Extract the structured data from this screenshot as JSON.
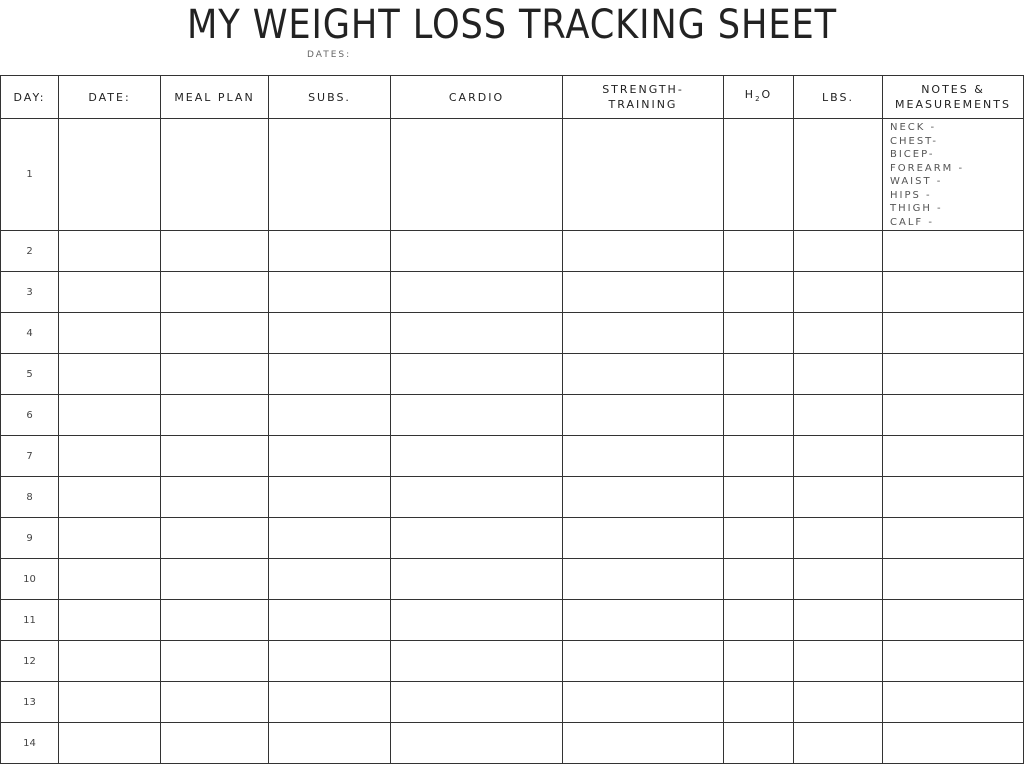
{
  "title": "MY WEIGHT LOSS TRACKING SHEET",
  "dates_label": "DATES:",
  "columns": [
    "DAY:",
    "DATE:",
    "MEAL PLAN",
    "SUBS.",
    "CARDIO",
    "STRENGTH-",
    "TRAINING",
    "H",
    "2",
    "O",
    "LBS.",
    "NOTES &",
    "MEASUREMENTS"
  ],
  "days": [
    "1",
    "2",
    "3",
    "4",
    "5",
    "6",
    "7",
    "8",
    "9",
    "10",
    "11",
    "12",
    "13",
    "14"
  ],
  "measurements": [
    "NECK -",
    "CHEST-",
    "BICEP-",
    "FOREARM -",
    "WAIST -",
    "HIPS -",
    "THIGH -",
    "CALF -"
  ]
}
